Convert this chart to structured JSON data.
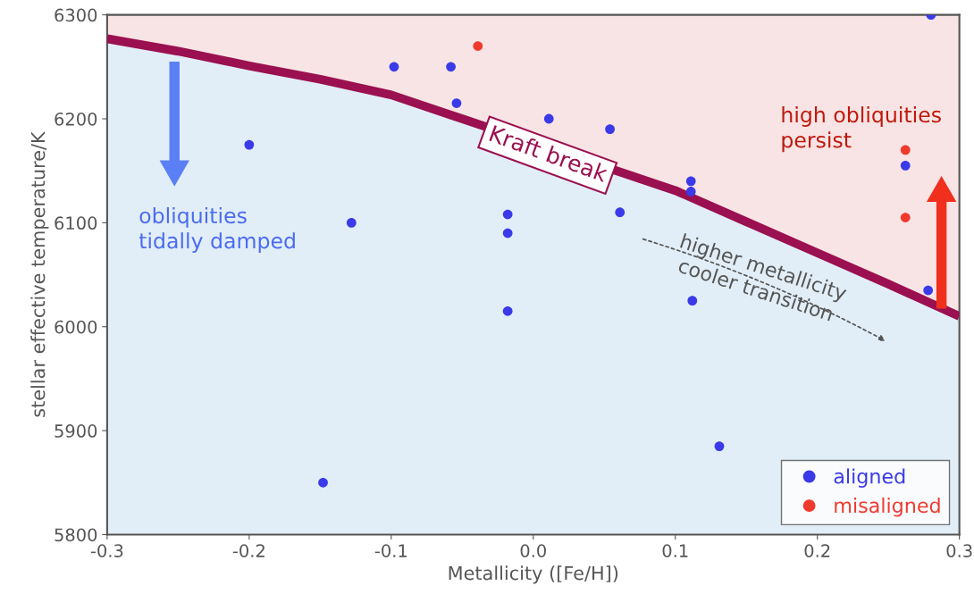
{
  "chart_data": {
    "type": "scatter",
    "xlabel": "Metallicity ([Fe/H])",
    "ylabel": "stellar effective temperature/K",
    "xlim": [
      -0.3,
      0.3
    ],
    "xticks": [
      {
        "value": -0.3,
        "label": "-0.3"
      },
      {
        "value": -0.2,
        "label": "-0.2"
      },
      {
        "value": -0.1,
        "label": "-0.1"
      },
      {
        "value": 0,
        "label": "0.0"
      },
      {
        "value": 0.1,
        "label": "0.1"
      },
      {
        "value": 0.2,
        "label": "0.2"
      },
      {
        "value": 0.3,
        "label": "0.3"
      }
    ],
    "ylim": [
      5800,
      6300
    ],
    "yticks": [
      5800,
      5900,
      6000,
      6100,
      6200,
      6300
    ],
    "grid": false,
    "legend": "bottom right",
    "marker": "circle",
    "series": [
      {
        "type": "area",
        "marker": "none",
        "color": "#9b1050",
        "x": [
          -0.3,
          -0.25,
          -0.2,
          -0.15,
          -0.1,
          0.1,
          0.15,
          0.2,
          0.25,
          0.3
        ],
        "values": [
          6277,
          6265,
          6251,
          6238,
          6223,
          6131,
          6101,
          6071,
          6041,
          6010
        ]
      },
      {
        "name": "aligned",
        "color": "#3b3ae8",
        "x": [
          -0.2,
          -0.148,
          -0.128,
          -0.098,
          -0.058,
          -0.054,
          -0.018,
          -0.018,
          -0.018,
          0.011,
          0.054,
          0.061,
          0.111,
          0.111,
          0.112,
          0.131,
          0.262,
          0.278,
          0.28
        ],
        "values": [
          6175,
          5850,
          6100,
          6250,
          6250,
          6215,
          6108,
          6090,
          6015,
          6200,
          6190,
          6110,
          6140,
          6130,
          6025,
          5885,
          6155,
          6035,
          6300
        ]
      },
      {
        "name": "misaligned",
        "color": "#f03a2e",
        "x": [
          -0.039,
          0.262,
          0.262
        ],
        "values": [
          6270,
          6170,
          6105
        ]
      }
    ],
    "annotations": [
      {
        "text": "Kraft break",
        "x": 0.01,
        "y": 6165
      },
      "obliquities\ntidally damped",
      "high obliquities\npersist",
      "higher metallicity\ncooler transition"
    ]
  }
}
